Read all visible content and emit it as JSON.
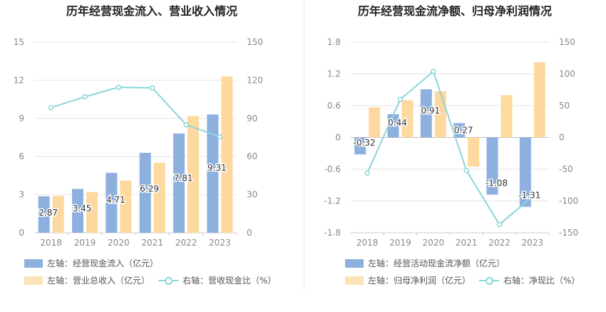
{
  "chart_data": [
    {
      "type": "bar",
      "title": "历年经营现金流入、营业收入情况",
      "categories": [
        "2018",
        "2019",
        "2020",
        "2021",
        "2022",
        "2023"
      ],
      "left_axis": {
        "ylim": [
          0,
          15
        ],
        "ticks": [
          "0",
          "3",
          "6",
          "9",
          "12",
          "15"
        ]
      },
      "right_axis": {
        "ylim": [
          0,
          150
        ],
        "ticks": [
          "0",
          "30",
          "60",
          "90",
          "120",
          "150"
        ]
      },
      "series": [
        {
          "name": "左轴：经营现金流入（亿元）",
          "axis": "left",
          "kind": "bar",
          "color": "#8eb0de",
          "values": [
            2.87,
            3.45,
            4.71,
            6.29,
            7.81,
            9.31
          ],
          "labels": [
            "2.87",
            "3.45",
            "4.71",
            "6.29",
            "7.81",
            "9.31"
          ]
        },
        {
          "name": "左轴：营业总收入（亿元）",
          "axis": "left",
          "kind": "bar",
          "color": "#fdd99f",
          "values": [
            2.9,
            3.2,
            4.1,
            5.5,
            9.2,
            12.3
          ]
        },
        {
          "name": "右轴：营收现金比（%）",
          "axis": "right",
          "kind": "line",
          "color": "#8dd6d8",
          "values": [
            98.5,
            107,
            114.5,
            114,
            85,
            75.5
          ]
        }
      ],
      "grid": true
    },
    {
      "type": "bar",
      "title": "历年经营现金流净额、归母净利润情况",
      "categories": [
        "2018",
        "2019",
        "2020",
        "2021",
        "2022",
        "2023"
      ],
      "left_axis": {
        "ylim": [
          -1.8,
          1.8
        ],
        "ticks": [
          "-1.8",
          "-1.2",
          "-0.6",
          "0",
          "0.6",
          "1.2",
          "1.8"
        ]
      },
      "right_axis": {
        "ylim": [
          -150,
          150
        ],
        "ticks": [
          "-150",
          "-100",
          "-50",
          "0",
          "50",
          "100",
          "150"
        ]
      },
      "series": [
        {
          "name": "左轴：经营活动现金流净额（亿元）",
          "axis": "left",
          "kind": "bar",
          "color": "#8eb0de",
          "values": [
            -0.32,
            0.44,
            0.91,
            0.27,
            -1.08,
            -1.31
          ],
          "labels": [
            "-0.32",
            "0.44",
            "0.91",
            "0.27",
            "-1.08",
            "-1.31"
          ]
        },
        {
          "name": "左轴：归母净利润（亿元）",
          "axis": "left",
          "kind": "bar",
          "color": "#fdd99f",
          "values": [
            0.57,
            0.7,
            0.87,
            -0.55,
            0.8,
            1.42
          ]
        },
        {
          "name": "右轴：净现比（%）",
          "axis": "right",
          "kind": "line",
          "color": "#8dd6d8",
          "values": [
            -56,
            60,
            104,
            -52,
            -137,
            -93
          ]
        }
      ],
      "grid": true
    }
  ]
}
